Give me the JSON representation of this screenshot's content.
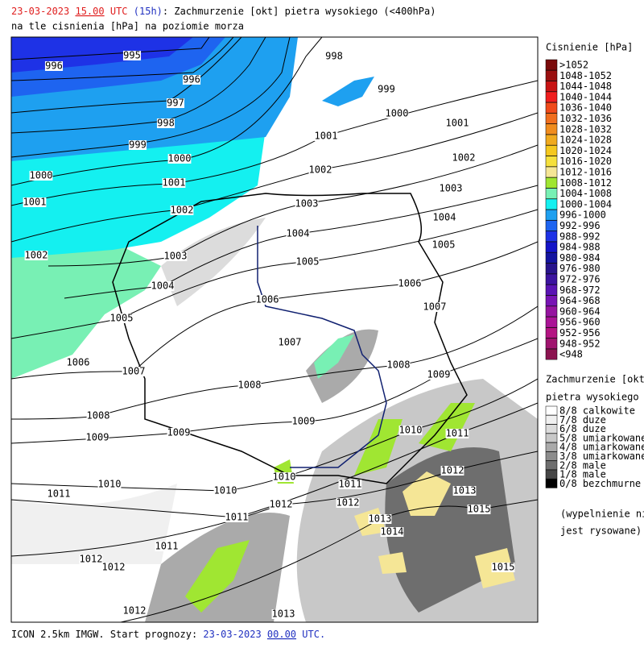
{
  "header": {
    "date": "23-03-2023",
    "hour": "15.00",
    "utc": "UTC",
    "lead": "(15h)",
    "title": ": Zachmurzenie [okt] pietra wysokiego (<400hPa)",
    "subtitle": "na tle cisnienia [hPa] na poziomie morza"
  },
  "footer": {
    "model": "ICON 2.5km IMGW. Start prognozy:",
    "date": "23-03-2023",
    "hour": "00.00",
    "utc": "UTC."
  },
  "pressure_legend": {
    "title": "Cisnienie [hPa]",
    "items": [
      {
        "label": ">1052",
        "color": "#7a0a0a"
      },
      {
        "label": "1048-1052",
        "color": "#9a1010"
      },
      {
        "label": "1044-1048",
        "color": "#c81414"
      },
      {
        "label": "1040-1044",
        "color": "#f01e1e"
      },
      {
        "label": "1036-1040",
        "color": "#f04a1a"
      },
      {
        "label": "1032-1036",
        "color": "#f06e1e"
      },
      {
        "label": "1028-1032",
        "color": "#f08c1e"
      },
      {
        "label": "1024-1028",
        "color": "#f0aa1e"
      },
      {
        "label": "1020-1024",
        "color": "#f5c81e"
      },
      {
        "label": "1016-1020",
        "color": "#f5e03c"
      },
      {
        "label": "1012-1016",
        "color": "#f5e696"
      },
      {
        "label": "1008-1012",
        "color": "#a0e632"
      },
      {
        "label": "1004-1008",
        "color": "#78f0b4"
      },
      {
        "label": "1000-1004",
        "color": "#14f0f0"
      },
      {
        "label": "996-1000",
        "color": "#1ea0f0"
      },
      {
        "label": "992-996",
        "color": "#1e64f0"
      },
      {
        "label": "988-992",
        "color": "#1e32e6"
      },
      {
        "label": "984-988",
        "color": "#1414c8"
      },
      {
        "label": "980-984",
        "color": "#1414a0"
      },
      {
        "label": "976-980",
        "color": "#28148c"
      },
      {
        "label": "972-976",
        "color": "#3c14a0"
      },
      {
        "label": "968-972",
        "color": "#5a14b4"
      },
      {
        "label": "964-968",
        "color": "#7814b4"
      },
      {
        "label": "960-964",
        "color": "#9614a0"
      },
      {
        "label": "956-960",
        "color": "#aa1496"
      },
      {
        "label": "952-956",
        "color": "#b41482"
      },
      {
        "label": "948-952",
        "color": "#a0146e"
      },
      {
        "label": "<948",
        "color": "#8c1450"
      }
    ]
  },
  "cloud_legend": {
    "title": [
      "Zachmurzenie [okt]",
      "pietra wysokiego"
    ],
    "items": [
      {
        "label": "8/8 calkowite",
        "color": "#ffffff"
      },
      {
        "label": "7/8 duze",
        "color": "#f0f0f0"
      },
      {
        "label": "6/8 duze",
        "color": "#dcdcdc"
      },
      {
        "label": "5/8 umiarkowane",
        "color": "#c8c8c8"
      },
      {
        "label": "4/8 umiarkowane",
        "color": "#aaaaaa"
      },
      {
        "label": "3/8 umiarkowane",
        "color": "#8c8c8c"
      },
      {
        "label": "2/8 male",
        "color": "#6e6e6e"
      },
      {
        "label": "1/8 male",
        "color": "#464646"
      },
      {
        "label": "0/8 bezchmurne",
        "color": "#000000"
      }
    ],
    "note": [
      "(wypelnienie nie",
      "jest rysowane)"
    ]
  },
  "isobar_labels": [
    "995",
    "996",
    "996",
    "997",
    "998",
    "999",
    "1000",
    "1000",
    "1001",
    "1001",
    "1002",
    "1002",
    "1003",
    "1004",
    "1005",
    "1006",
    "1007",
    "1008",
    "1009",
    "1009",
    "1010",
    "1011",
    "1011",
    "1011",
    "1012",
    "1012",
    "1012",
    "1013",
    "998",
    "999",
    "1000",
    "1001",
    "1001",
    "1002",
    "1002",
    "1003",
    "1003",
    "1004",
    "1004",
    "1005",
    "1005",
    "1006",
    "1006",
    "1007",
    "1007",
    "1008",
    "1008",
    "1009",
    "1009",
    "1010",
    "1010",
    "1010",
    "1011",
    "1011",
    "1012",
    "1012",
    "1012",
    "1013",
    "1013",
    "1014",
    "1015",
    "1015"
  ]
}
